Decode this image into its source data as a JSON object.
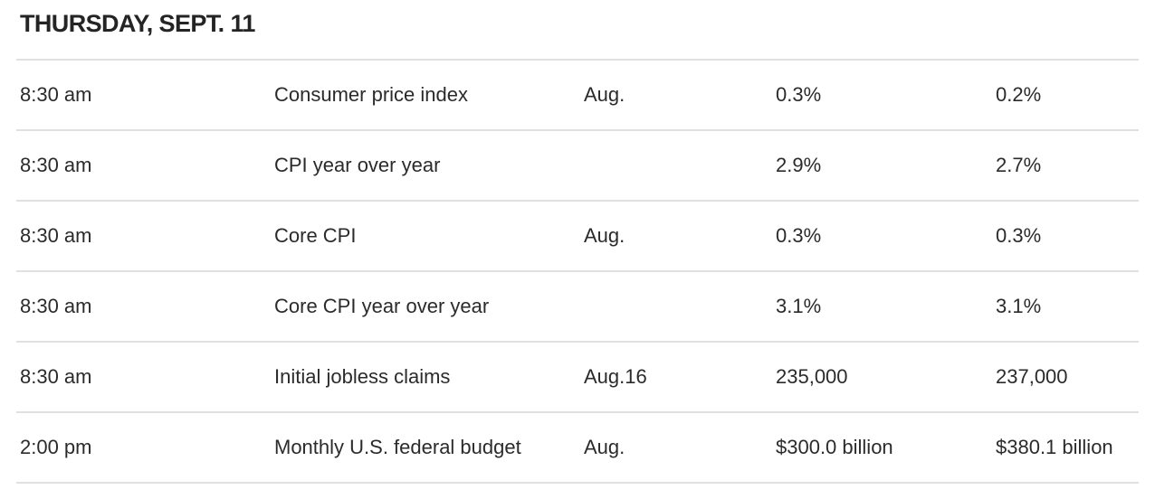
{
  "header": {
    "title": "THURSDAY, SEPT. 11"
  },
  "table": {
    "rows": [
      {
        "time": "8:30 am",
        "report": "Consumer price index",
        "period": "Aug.",
        "forecast": "0.3%",
        "previous": "0.2%"
      },
      {
        "time": "8:30 am",
        "report": "CPI year over year",
        "period": "",
        "forecast": "2.9%",
        "previous": "2.7%"
      },
      {
        "time": "8:30 am",
        "report": "Core CPI",
        "period": "Aug.",
        "forecast": "0.3%",
        "previous": "0.3%"
      },
      {
        "time": "8:30 am",
        "report": "Core CPI year over year",
        "period": "",
        "forecast": "3.1%",
        "previous": "3.1%"
      },
      {
        "time": "8:30 am",
        "report": "Initial jobless claims",
        "period": "Aug.16",
        "forecast": "235,000",
        "previous": "237,000"
      },
      {
        "time": "2:00 pm",
        "report": "Monthly U.S. federal budget",
        "period": "Aug.",
        "forecast": "$300.0 billion",
        "previous": "$380.1 billion"
      }
    ]
  },
  "colors": {
    "background": "#ffffff",
    "text": "#2b2b2b",
    "divider": "#e0e0e0"
  }
}
